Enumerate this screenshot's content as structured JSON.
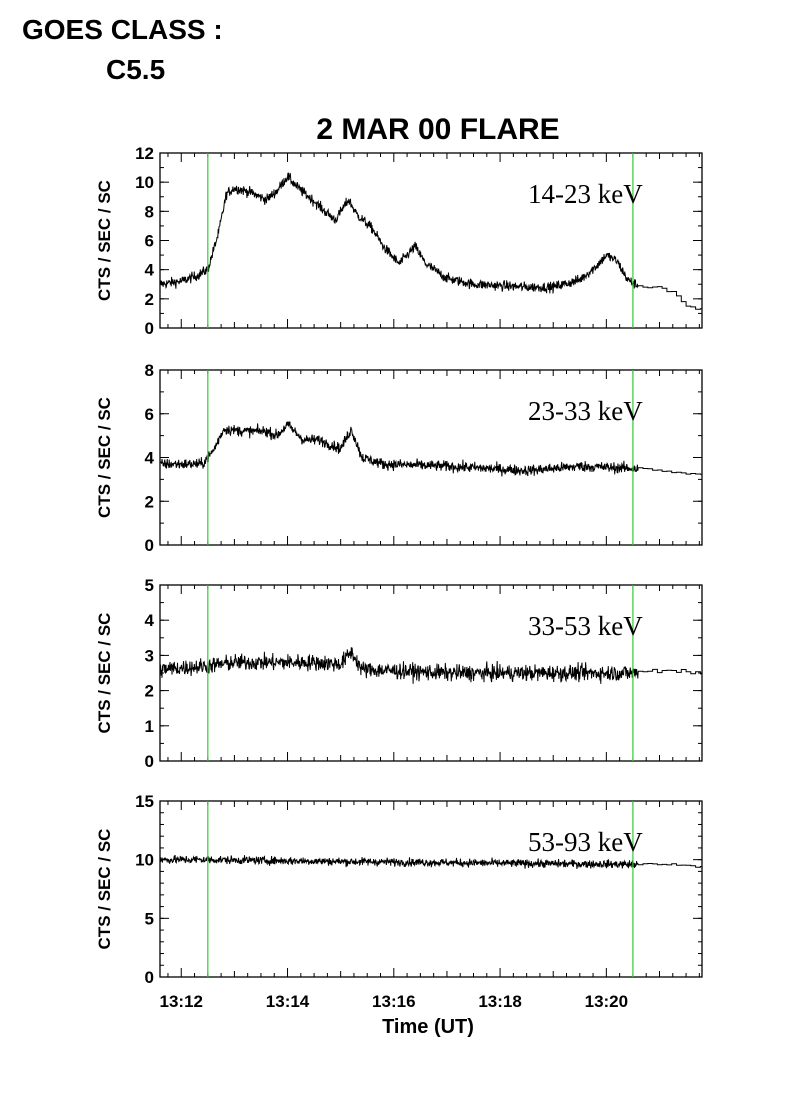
{
  "header": {
    "goes_label": "GOES CLASS :",
    "goes_value": "C5.5"
  },
  "colors": {
    "axes": "#000000",
    "data": "#000000",
    "marker_lines": "#33cc33",
    "background": "#ffffff"
  },
  "chart_data": {
    "type": "line",
    "title": "2 MAR 00 FLARE",
    "xlabel": "Time (UT)",
    "x_unit": "minutes of hour 13 (UT)",
    "xlim": [
      11.6,
      21.8
    ],
    "x_tick_values": [
      12,
      14,
      16,
      18,
      20
    ],
    "x_tick_labels": [
      "13:12",
      "13:14",
      "13:16",
      "13:18",
      "13:20"
    ],
    "vertical_markers": [
      12.5,
      20.5
    ],
    "panels": [
      {
        "band_label": "14-23 keV",
        "ylabel": "CTS / SEC / SC",
        "ylim": [
          0,
          12
        ],
        "y_ticks": [
          0,
          2,
          4,
          6,
          8,
          10,
          12
        ],
        "noise": 0.45,
        "fine_end": 20.6,
        "envelope": [
          [
            11.6,
            3.0
          ],
          [
            12.0,
            3.2
          ],
          [
            12.3,
            3.6
          ],
          [
            12.5,
            4.0
          ],
          [
            12.7,
            6.5
          ],
          [
            12.85,
            9.2
          ],
          [
            13.0,
            9.6
          ],
          [
            13.3,
            9.3
          ],
          [
            13.6,
            8.8
          ],
          [
            13.8,
            9.4
          ],
          [
            14.0,
            10.4
          ],
          [
            14.2,
            9.6
          ],
          [
            14.5,
            8.7
          ],
          [
            14.7,
            8.0
          ],
          [
            14.9,
            7.4
          ],
          [
            15.15,
            8.8
          ],
          [
            15.3,
            7.8
          ],
          [
            15.6,
            6.8
          ],
          [
            15.8,
            5.6
          ],
          [
            16.1,
            4.4
          ],
          [
            16.4,
            5.6
          ],
          [
            16.6,
            4.4
          ],
          [
            17.0,
            3.4
          ],
          [
            17.5,
            3.0
          ],
          [
            18.5,
            2.8
          ],
          [
            19.0,
            2.8
          ],
          [
            19.5,
            3.3
          ],
          [
            19.8,
            4.2
          ],
          [
            20.0,
            5.0
          ],
          [
            20.2,
            4.6
          ],
          [
            20.4,
            3.3
          ],
          [
            20.6,
            2.9
          ],
          [
            21.0,
            2.8
          ],
          [
            21.3,
            2.3
          ],
          [
            21.5,
            1.5
          ],
          [
            21.8,
            1.2
          ]
        ]
      },
      {
        "band_label": "23-33 keV",
        "ylabel": "CTS / SEC / SC",
        "ylim": [
          0,
          8
        ],
        "y_ticks": [
          0,
          2,
          4,
          6,
          8
        ],
        "noise": 0.32,
        "fine_end": 20.6,
        "envelope": [
          [
            11.6,
            3.7
          ],
          [
            12.4,
            3.7
          ],
          [
            12.6,
            4.3
          ],
          [
            12.8,
            5.3
          ],
          [
            13.2,
            5.2
          ],
          [
            13.6,
            5.2
          ],
          [
            13.8,
            5.0
          ],
          [
            14.0,
            5.5
          ],
          [
            14.3,
            4.8
          ],
          [
            14.6,
            4.8
          ],
          [
            15.0,
            4.4
          ],
          [
            15.2,
            5.3
          ],
          [
            15.4,
            4.0
          ],
          [
            15.8,
            3.7
          ],
          [
            17.0,
            3.6
          ],
          [
            18.5,
            3.4
          ],
          [
            19.5,
            3.6
          ],
          [
            20.5,
            3.5
          ],
          [
            21.0,
            3.4
          ],
          [
            21.8,
            3.2
          ]
        ]
      },
      {
        "band_label": "33-53 keV",
        "ylabel": "CTS / SEC / SC",
        "ylim": [
          0,
          5
        ],
        "y_ticks": [
          0,
          1,
          2,
          3,
          4,
          5
        ],
        "noise": 0.3,
        "fine_end": 20.6,
        "envelope": [
          [
            11.6,
            2.6
          ],
          [
            12.5,
            2.7
          ],
          [
            13.0,
            2.8
          ],
          [
            14.0,
            2.8
          ],
          [
            14.5,
            2.8
          ],
          [
            15.0,
            2.75
          ],
          [
            15.2,
            3.1
          ],
          [
            15.4,
            2.6
          ],
          [
            17.0,
            2.5
          ],
          [
            19.0,
            2.5
          ],
          [
            20.5,
            2.5
          ],
          [
            21.0,
            2.6
          ],
          [
            21.8,
            2.5
          ]
        ]
      },
      {
        "band_label": "53-93 keV",
        "ylabel": "CTS / SEC / SC",
        "ylim": [
          0,
          15
        ],
        "y_ticks": [
          0,
          5,
          10,
          15
        ],
        "noise": 0.45,
        "fine_end": 20.6,
        "envelope": [
          [
            11.6,
            10.0
          ],
          [
            12.5,
            10.0
          ],
          [
            14.0,
            9.9
          ],
          [
            16.0,
            9.8
          ],
          [
            18.0,
            9.7
          ],
          [
            20.5,
            9.6
          ],
          [
            21.0,
            9.6
          ],
          [
            21.8,
            9.4
          ]
        ]
      }
    ]
  }
}
